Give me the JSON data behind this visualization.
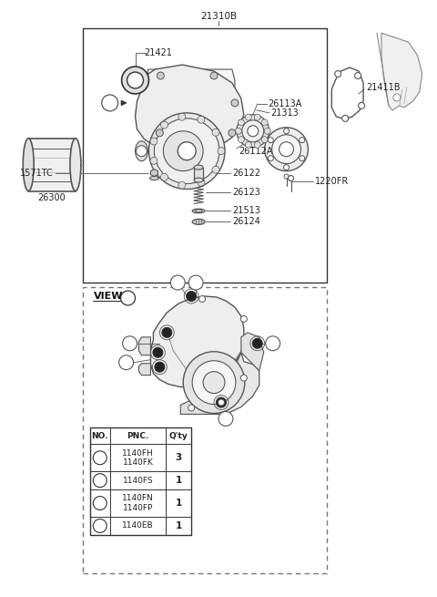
{
  "bg_color": "#ffffff",
  "part_number_top": "21310B",
  "table_headers": [
    "NO.",
    "PNC.",
    "Q'ty"
  ],
  "table_rows": [
    [
      "a",
      "1140FH\n1140FK",
      "3"
    ],
    [
      "b",
      "1140FS",
      "1"
    ],
    [
      "c",
      "1140FN\n1140FP",
      "1"
    ],
    [
      "d",
      "1140EB",
      "1"
    ]
  ],
  "lc": "#555555",
  "lc2": "#333333",
  "fg": "#222222"
}
